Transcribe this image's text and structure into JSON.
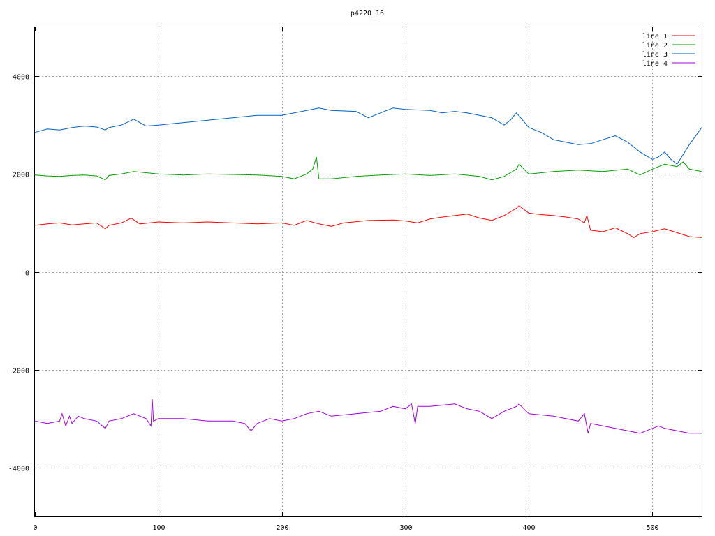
{
  "chart_data": {
    "type": "line",
    "title": "p4220_16",
    "xlabel": "",
    "ylabel": "",
    "xlim": [
      0,
      540
    ],
    "ylim": [
      -5000,
      5000
    ],
    "xticks": [
      0,
      100,
      200,
      300,
      400,
      500
    ],
    "yticks": [
      -4000,
      -2000,
      0,
      2000,
      4000
    ],
    "grid": true,
    "legend_position": "top-right",
    "series": [
      {
        "name": "line 1",
        "color": "#ff0000",
        "x": [
          0,
          10,
          20,
          30,
          40,
          50,
          57,
          60,
          70,
          78,
          85,
          100,
          120,
          140,
          160,
          180,
          200,
          210,
          220,
          230,
          240,
          250,
          270,
          290,
          300,
          310,
          320,
          330,
          340,
          350,
          360,
          370,
          380,
          390,
          392,
          400,
          410,
          420,
          430,
          440,
          445,
          447,
          450,
          460,
          470,
          480,
          485,
          490,
          500,
          510,
          520,
          530,
          540
        ],
        "y": [
          950,
          980,
          1000,
          960,
          980,
          1000,
          880,
          950,
          1000,
          1100,
          980,
          1020,
          1000,
          1020,
          1000,
          980,
          1000,
          950,
          1050,
          980,
          930,
          1000,
          1050,
          1060,
          1040,
          1000,
          1080,
          1120,
          1150,
          1180,
          1100,
          1050,
          1150,
          1300,
          1350,
          1200,
          1170,
          1150,
          1120,
          1080,
          1000,
          1150,
          850,
          820,
          900,
          780,
          700,
          780,
          820,
          880,
          800,
          720,
          700
        ]
      },
      {
        "name": "line 2",
        "color": "#00a000",
        "x": [
          0,
          10,
          20,
          30,
          40,
          50,
          57,
          60,
          70,
          80,
          100,
          120,
          140,
          160,
          180,
          200,
          210,
          220,
          225,
          228,
          230,
          240,
          260,
          280,
          300,
          320,
          340,
          360,
          370,
          380,
          390,
          392,
          400,
          420,
          440,
          460,
          480,
          490,
          500,
          510,
          520,
          525,
          530,
          540
        ],
        "y": [
          1980,
          1960,
          1950,
          1970,
          1980,
          1960,
          1880,
          1970,
          2000,
          2050,
          2000,
          1980,
          2000,
          1990,
          1980,
          1950,
          1900,
          2000,
          2100,
          2350,
          1900,
          1900,
          1950,
          1980,
          2000,
          1970,
          2000,
          1950,
          1880,
          1950,
          2100,
          2200,
          2000,
          2050,
          2080,
          2050,
          2100,
          1980,
          2100,
          2200,
          2150,
          2250,
          2100,
          2050
        ]
      },
      {
        "name": "line 3",
        "color": "#0060c0",
        "x": [
          0,
          10,
          20,
          30,
          40,
          50,
          57,
          60,
          70,
          80,
          90,
          100,
          120,
          140,
          160,
          180,
          200,
          220,
          230,
          240,
          260,
          270,
          280,
          290,
          300,
          320,
          330,
          340,
          350,
          360,
          370,
          380,
          385,
          390,
          395,
          400,
          410,
          420,
          430,
          440,
          450,
          460,
          470,
          480,
          490,
          500,
          505,
          510,
          515,
          520,
          525,
          530,
          540
        ],
        "y": [
          2850,
          2920,
          2900,
          2950,
          2980,
          2960,
          2900,
          2950,
          3000,
          3120,
          2980,
          3000,
          3050,
          3100,
          3150,
          3200,
          3200,
          3300,
          3350,
          3300,
          3280,
          3150,
          3250,
          3350,
          3320,
          3300,
          3250,
          3280,
          3250,
          3200,
          3150,
          3000,
          3100,
          3250,
          3100,
          2950,
          2850,
          2700,
          2650,
          2600,
          2620,
          2700,
          2780,
          2650,
          2450,
          2300,
          2350,
          2450,
          2300,
          2200,
          2400,
          2600,
          2950
        ]
      },
      {
        "name": "line 4",
        "color": "#a000e0",
        "x": [
          0,
          10,
          20,
          22,
          25,
          28,
          30,
          35,
          40,
          50,
          57,
          60,
          70,
          80,
          90,
          94,
          95,
          96,
          100,
          120,
          140,
          160,
          170,
          175,
          180,
          190,
          200,
          210,
          220,
          230,
          240,
          260,
          280,
          290,
          300,
          305,
          308,
          310,
          320,
          340,
          350,
          360,
          370,
          380,
          390,
          392,
          400,
          420,
          440,
          445,
          448,
          450,
          460,
          470,
          480,
          490,
          500,
          505,
          510,
          520,
          530,
          540
        ],
        "y": [
          -3050,
          -3100,
          -3050,
          -2900,
          -3150,
          -2950,
          -3100,
          -2950,
          -3000,
          -3050,
          -3200,
          -3050,
          -3000,
          -2900,
          -3000,
          -3150,
          -2600,
          -3050,
          -3000,
          -3000,
          -3050,
          -3050,
          -3100,
          -3250,
          -3100,
          -3000,
          -3050,
          -3000,
          -2900,
          -2850,
          -2950,
          -2900,
          -2850,
          -2750,
          -2800,
          -2700,
          -3100,
          -2750,
          -2750,
          -2700,
          -2800,
          -2850,
          -3000,
          -2850,
          -2750,
          -2700,
          -2900,
          -2950,
          -3050,
          -2900,
          -3300,
          -3100,
          -3150,
          -3200,
          -3250,
          -3300,
          -3200,
          -3150,
          -3200,
          -3250,
          -3300,
          -3300
        ]
      }
    ]
  }
}
